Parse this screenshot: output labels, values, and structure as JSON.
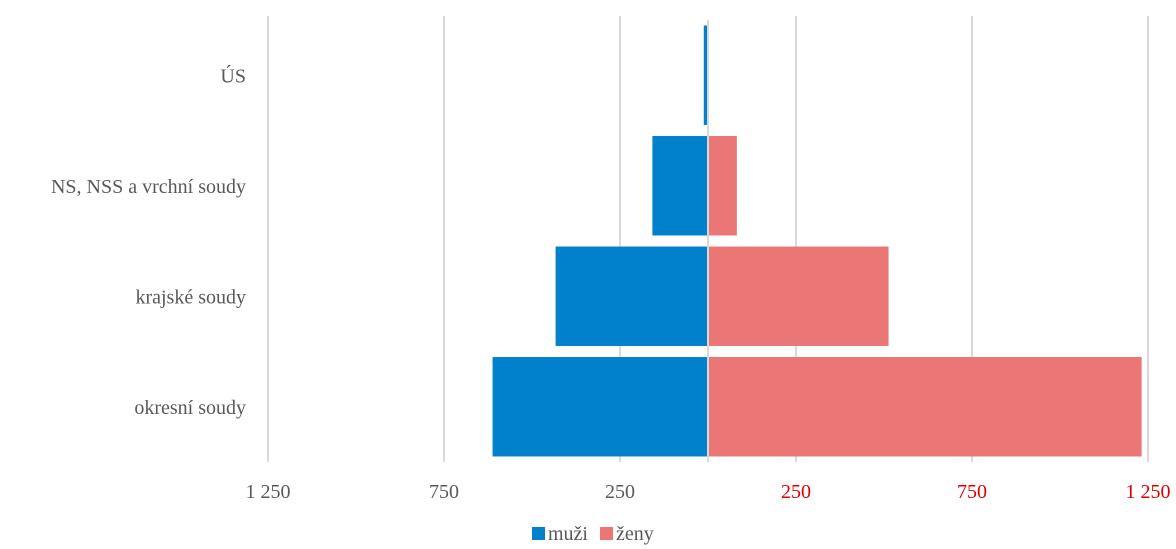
{
  "chart_data": {
    "type": "bar",
    "orientation": "horizontal",
    "layout": "population-pyramid",
    "categories": [
      "ÚS",
      "NS, NSS a vrchní soudy",
      "krajské soudy",
      "okresní soudy"
    ],
    "series": [
      {
        "name": "muži",
        "values": [
          12,
          158,
          433,
          612
        ],
        "side": "left",
        "color": "#0181CC"
      },
      {
        "name": "ženy",
        "values": [
          2,
          82,
          513,
          1232
        ],
        "side": "right",
        "color": "#EA7776"
      }
    ],
    "xlim": [
      -1250,
      1250
    ],
    "x_ticks": [
      {
        "value": -1250,
        "label": "1 250"
      },
      {
        "value": -750,
        "label": "750"
      },
      {
        "value": -250,
        "label": "250"
      },
      {
        "value": 250,
        "label": "250"
      },
      {
        "value": 750,
        "label": "750"
      },
      {
        "value": 1250,
        "label": "1 250"
      }
    ],
    "tick_color_left": "#595959",
    "tick_color_right": "#E00000",
    "grid": true,
    "grid_color": "#D9D9D9",
    "legend_position": "bottom",
    "title": "",
    "xlabel": "",
    "ylabel": ""
  }
}
